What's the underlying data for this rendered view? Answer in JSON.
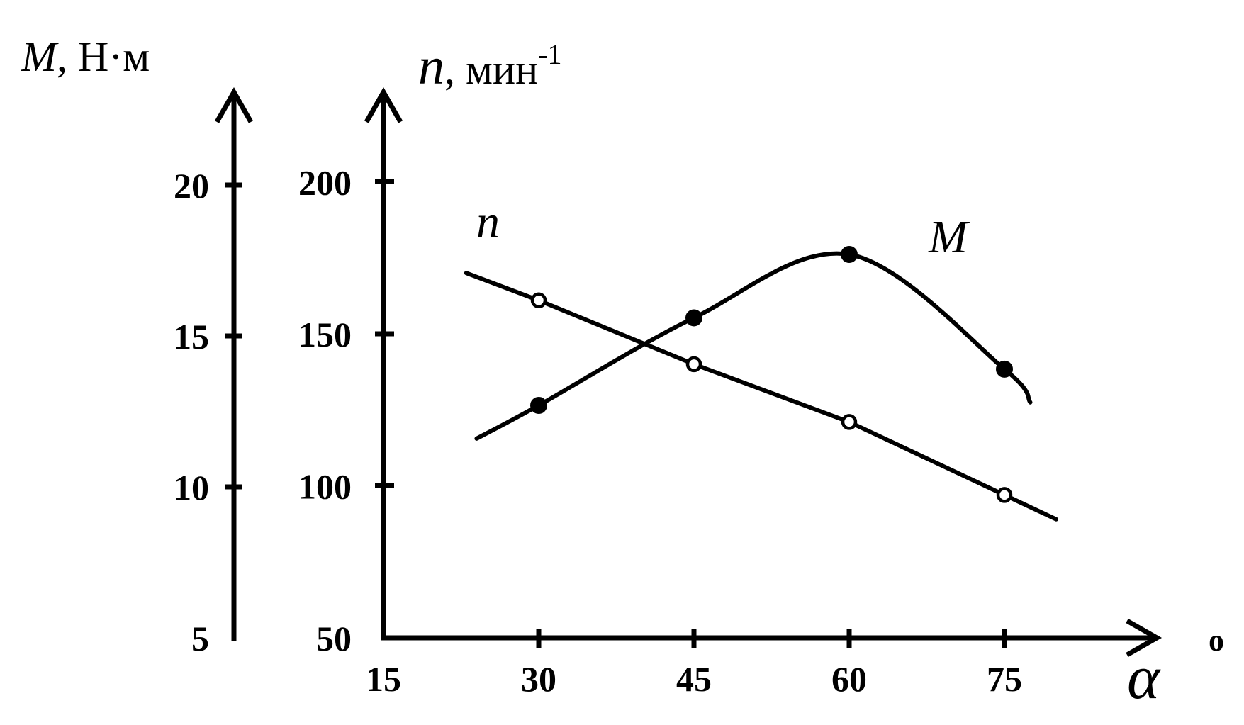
{
  "chart_data": {
    "type": "line",
    "x_axis": {
      "label_symbol": "α",
      "label_unit": "о",
      "ticks": [
        15,
        30,
        45,
        60,
        75
      ],
      "range": [
        15,
        90
      ]
    },
    "y_axis_left": {
      "label_symbol": "M",
      "label_unit": ", Н·м",
      "ticks": [
        5,
        10,
        15,
        20
      ],
      "range": [
        5,
        25
      ]
    },
    "y_axis_right": {
      "label_symbol": "n",
      "label_unit": ", мин",
      "label_superscript": "-1",
      "ticks": [
        50,
        100,
        150,
        200
      ],
      "range": [
        50,
        250
      ]
    },
    "series": [
      {
        "name": "n",
        "axis": "right",
        "marker": "open-circle",
        "points": [
          {
            "x": 30,
            "y": 161
          },
          {
            "x": 45,
            "y": 140
          },
          {
            "x": 60,
            "y": 121
          },
          {
            "x": 75,
            "y": 97
          }
        ],
        "line_extent": [
          {
            "x": 23,
            "y": 170
          },
          {
            "x": 80,
            "y": 89
          }
        ]
      },
      {
        "name": "M",
        "axis": "left",
        "marker": "filled-circle",
        "points": [
          {
            "x": 30,
            "y": 12.7
          },
          {
            "x": 45,
            "y": 15.6
          },
          {
            "x": 60,
            "y": 17.7
          },
          {
            "x": 75,
            "y": 13.9
          }
        ],
        "line_extent": [
          {
            "x": 24,
            "y": 11.6
          },
          {
            "x": 77.5,
            "y": 12.8
          }
        ]
      }
    ],
    "grid": false,
    "legend": "inline labels"
  }
}
